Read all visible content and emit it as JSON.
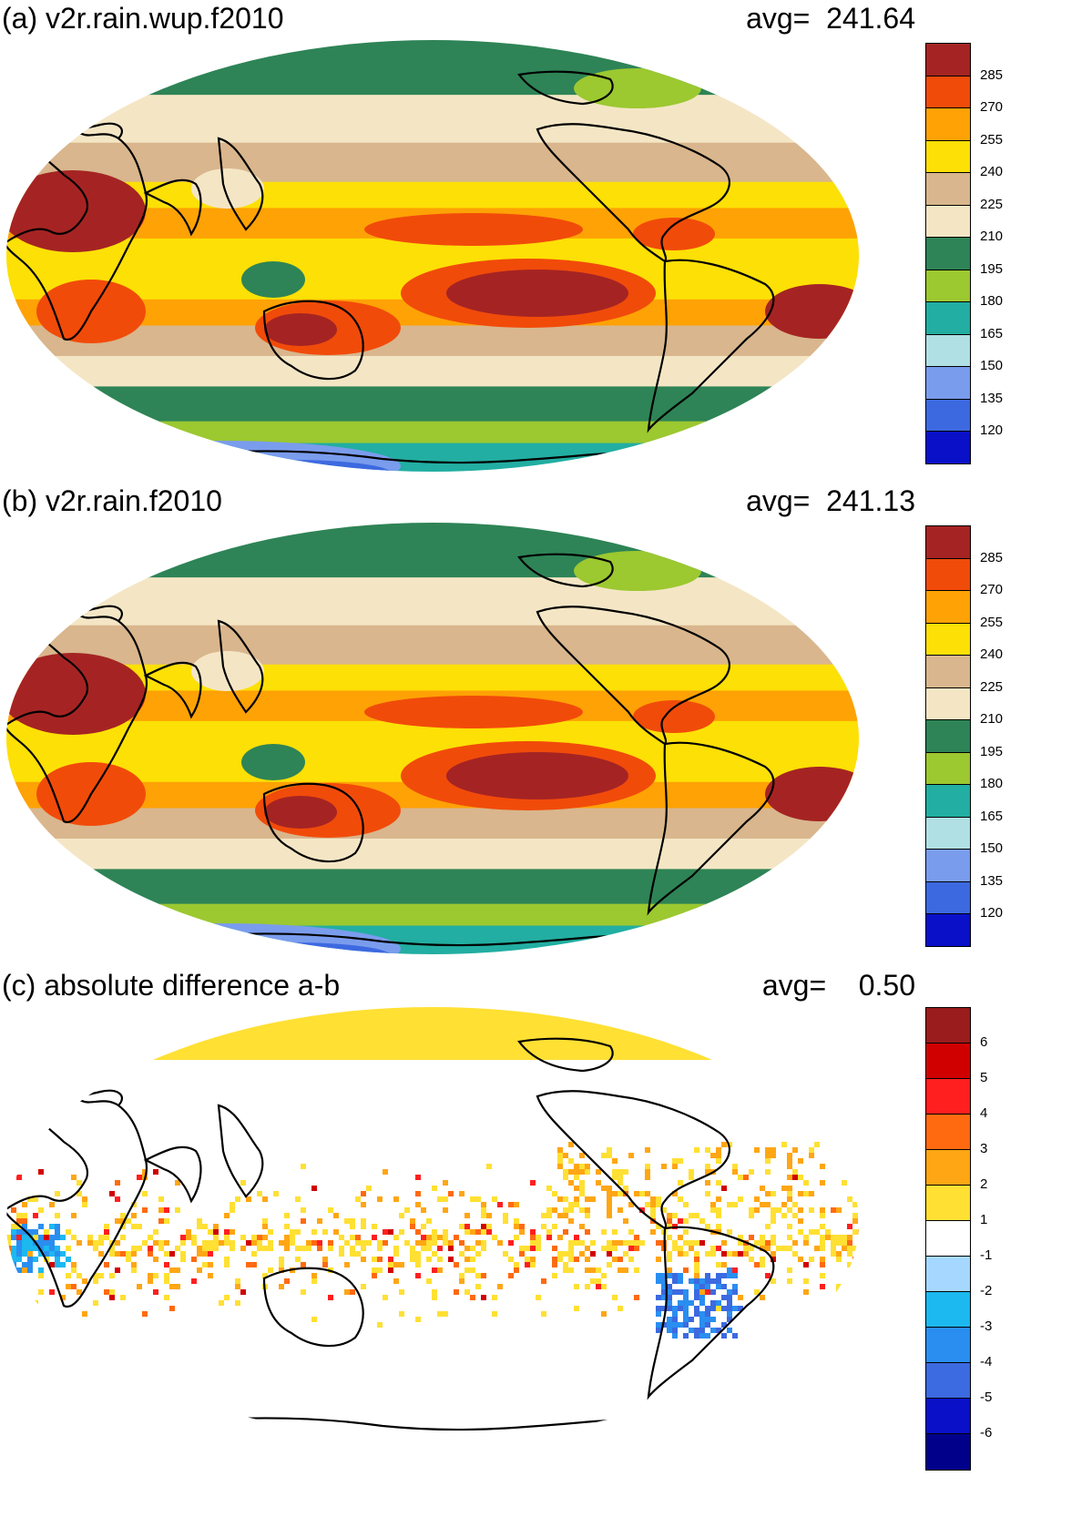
{
  "panels": [
    {
      "id": "a",
      "title": "(a) v2r.rain.wup.f2010",
      "avg_text": "avg=  241.64",
      "colorbar": {
        "labels": [
          "285",
          "270",
          "255",
          "240",
          "225",
          "210",
          "195",
          "180",
          "165",
          "150",
          "135",
          "120"
        ],
        "colors": [
          "#a52423",
          "#f14b0a",
          "#fea205",
          "#fde005",
          "#d9b68d",
          "#f4e6c5",
          "#2e8456",
          "#9cc830",
          "#22aea2",
          "#b0e0e4",
          "#7a9ced",
          "#3d69e0",
          "#0a10c8"
        ]
      }
    },
    {
      "id": "b",
      "title": "(b) v2r.rain.f2010",
      "avg_text": "avg=  241.13",
      "colorbar": {
        "labels": [
          "285",
          "270",
          "255",
          "240",
          "225",
          "210",
          "195",
          "180",
          "165",
          "150",
          "135",
          "120"
        ],
        "colors": [
          "#a52423",
          "#f14b0a",
          "#fea205",
          "#fde005",
          "#d9b68d",
          "#f4e6c5",
          "#2e8456",
          "#9cc830",
          "#22aea2",
          "#b0e0e4",
          "#7a9ced",
          "#3d69e0",
          "#0a10c8"
        ]
      }
    },
    {
      "id": "c",
      "title": "(c) absolute difference a-b",
      "avg_text": "avg=    0.50",
      "colorbar": {
        "labels": [
          "6",
          "5",
          "4",
          "3",
          "2",
          "1",
          "-1",
          "-2",
          "-3",
          "-4",
          "-5",
          "-6"
        ],
        "colors": [
          "#9b1c1c",
          "#d10000",
          "#ff1f1f",
          "#ff6a10",
          "#ffa614",
          "#ffe033",
          "#ffffff",
          "#a6d8ff",
          "#1cb8f0",
          "#2a8ef0",
          "#3c6ae0",
          "#0a10c8",
          "#00008b"
        ]
      }
    }
  ]
}
